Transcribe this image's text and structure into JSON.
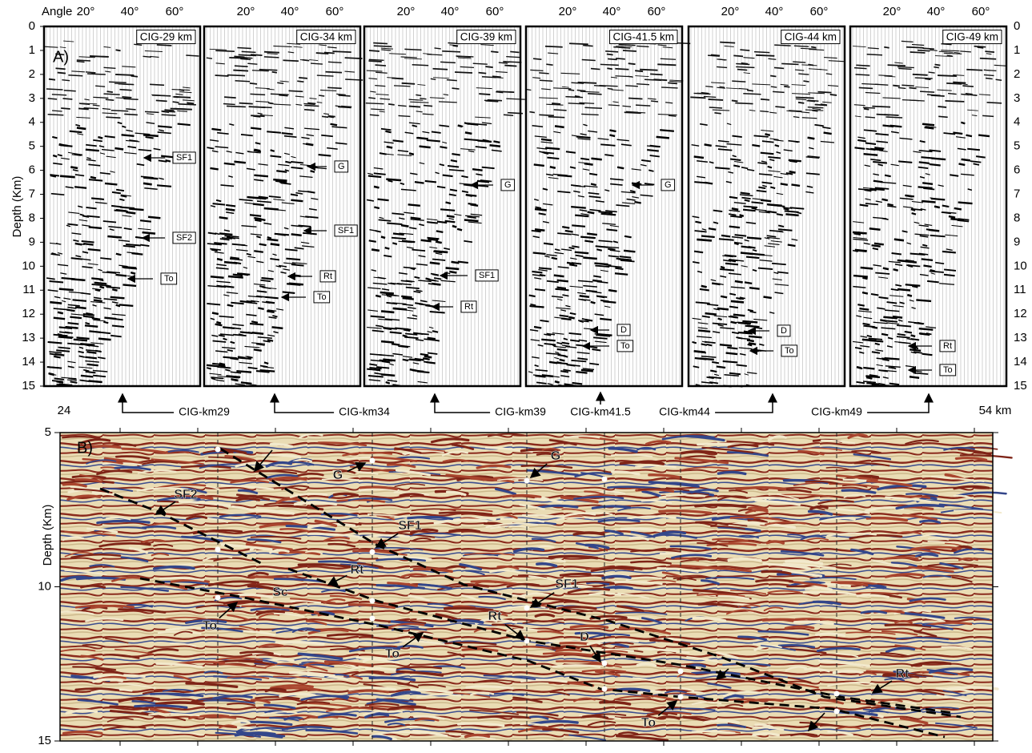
{
  "panel_a": {
    "label": "A)",
    "angle_label": "Angle",
    "angle_ticks": [
      "20°",
      "40°",
      "60°"
    ],
    "depth_label": "Depth (Km)",
    "depth_ticks": [
      0,
      1,
      2,
      3,
      4,
      5,
      6,
      7,
      8,
      9,
      10,
      11,
      12,
      13,
      14,
      15
    ],
    "gathers": [
      {
        "title": "CIG-29 km",
        "picks": [
          "SF1",
          "SF2",
          "To"
        ]
      },
      {
        "title": "CIG-34 km",
        "picks": [
          "G",
          "SF1",
          "Rt",
          "To"
        ]
      },
      {
        "title": "CIG-39 km",
        "picks": [
          "G",
          "SF1",
          "Rt"
        ]
      },
      {
        "title": "CIG-41.5 km",
        "picks": [
          "G",
          "D",
          "To"
        ]
      },
      {
        "title": "CIG-44 km",
        "picks": [
          "D",
          "To"
        ]
      },
      {
        "title": "CIG-49 km",
        "picks": [
          "Rt",
          "To"
        ]
      }
    ]
  },
  "locations": {
    "start": "24",
    "end": "54 km",
    "cigs": [
      "CIG-km29",
      "CIG-km34",
      "CIG-km39",
      "CIG-km41.5",
      "CIG-km44",
      "CIG-km49"
    ]
  },
  "panel_b": {
    "label": "B)",
    "depth_label": "Depth (Km)",
    "depth_ticks": [
      5,
      10,
      15
    ],
    "annotations": [
      "SF2",
      "G",
      "G",
      "SF1",
      "Rt",
      "Sc",
      "To",
      "SF1",
      "Rt",
      "To",
      "D",
      "To",
      "Rt"
    ]
  }
}
